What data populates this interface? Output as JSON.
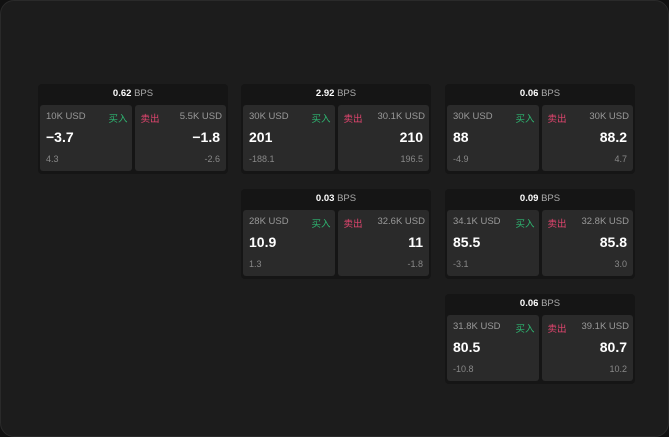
{
  "unit": "BPS",
  "buy_label": "买入",
  "sell_label": "卖出",
  "colors": {
    "buy": "#2eb872",
    "sell": "#e2456f"
  },
  "cards": [
    {
      "bps": "0.62",
      "bid_size": "10K USD",
      "bid": "−3.7",
      "bid_sub": "4.3",
      "ask_size": "5.5K USD",
      "ask": "−1.8",
      "ask_sub": "-2.6"
    },
    {
      "bps": "2.92",
      "bid_size": "30K USD",
      "bid": "201",
      "bid_sub": "-188.1",
      "ask_size": "30.1K USD",
      "ask": "210",
      "ask_sub": "196.5"
    },
    {
      "bps": "0.06",
      "bid_size": "30K USD",
      "bid": "88",
      "bid_sub": "-4.9",
      "ask_size": "30K USD",
      "ask": "88.2",
      "ask_sub": "4.7"
    },
    {
      "bps": "0.03",
      "bid_size": "28K USD",
      "bid": "10.9",
      "bid_sub": "1.3",
      "ask_size": "32.6K USD",
      "ask": "11",
      "ask_sub": "-1.8"
    },
    {
      "bps": "0.09",
      "bid_size": "34.1K USD",
      "bid": "85.5",
      "bid_sub": "-3.1",
      "ask_size": "32.8K USD",
      "ask": "85.8",
      "ask_sub": "3.0"
    },
    {
      "bps": "0.06",
      "bid_size": "31.8K USD",
      "bid": "80.5",
      "bid_sub": "-10.8",
      "ask_size": "39.1K USD",
      "ask": "80.7",
      "ask_sub": "10.2"
    }
  ]
}
